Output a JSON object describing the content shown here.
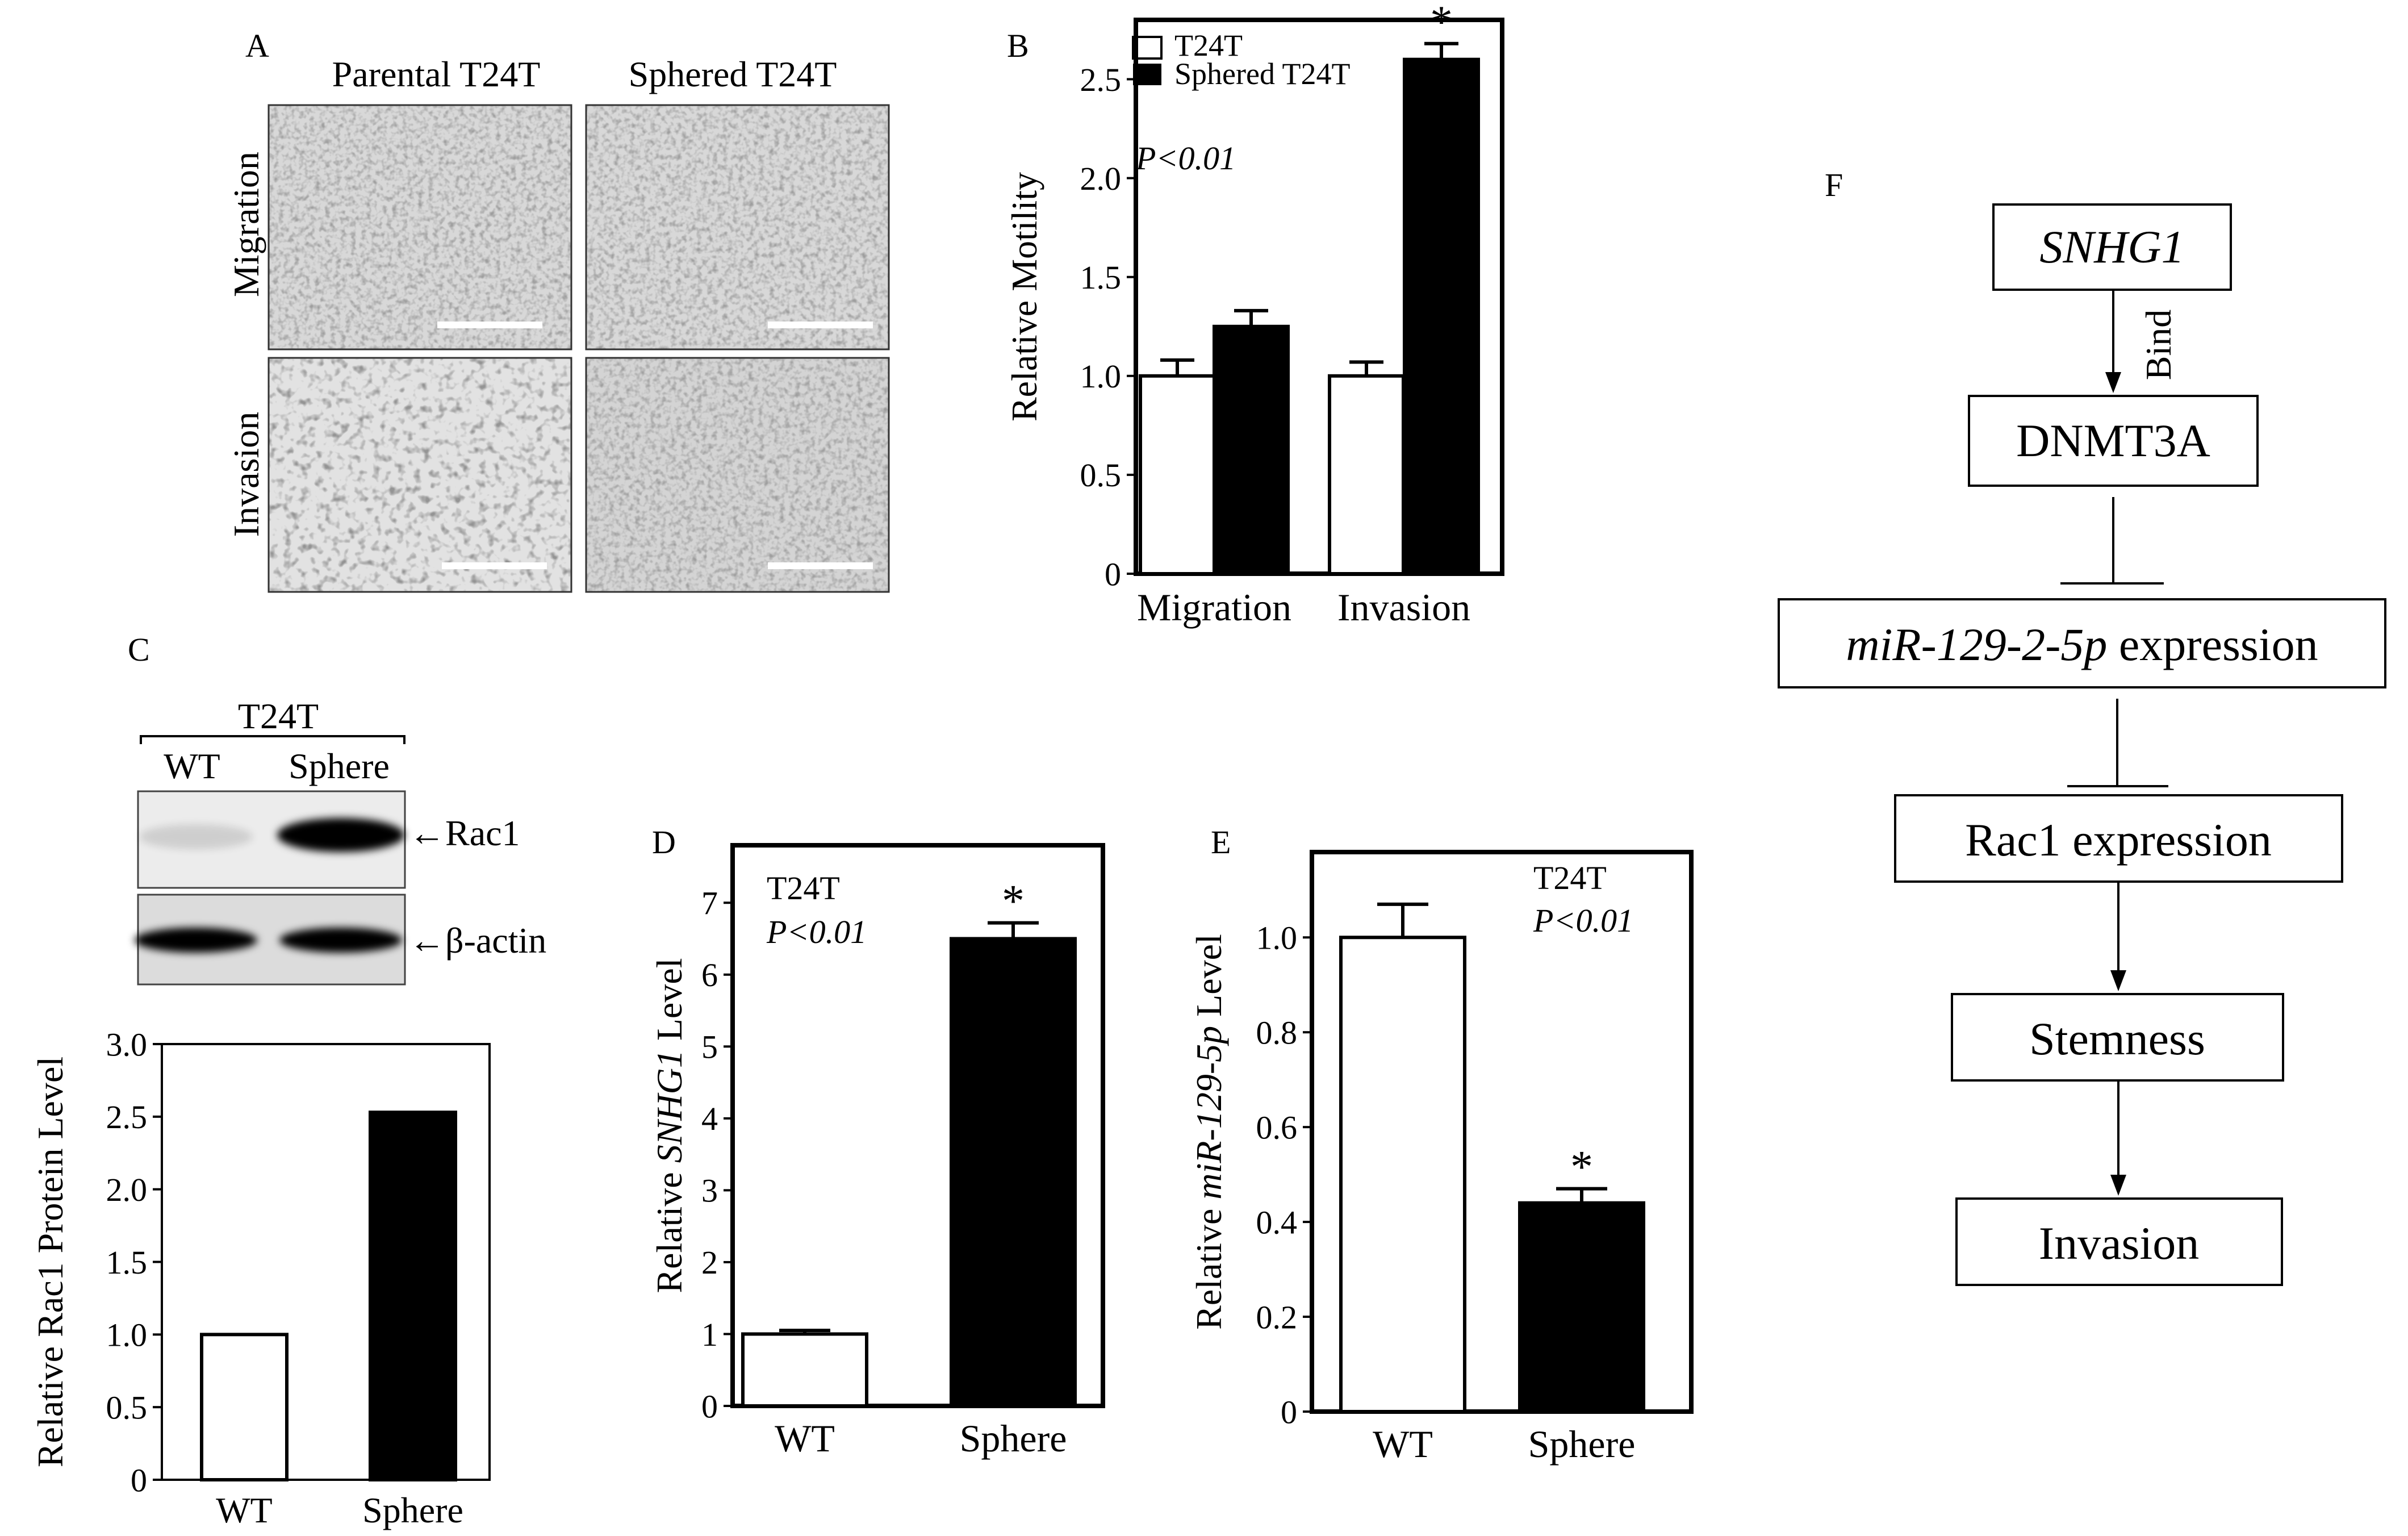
{
  "panel_labels": {
    "a": "A",
    "b": "B",
    "c": "C",
    "d": "D",
    "e": "E",
    "f": "F"
  },
  "panel_a": {
    "column_titles": [
      "Parental T24T",
      "Sphered T24T"
    ],
    "row_titles": [
      "Migration",
      "Invasion"
    ]
  },
  "panel_c_blot": {
    "group_label": "T24T",
    "lane_labels": [
      "WT",
      "Sphere"
    ],
    "band_labels": [
      "←Rac1",
      "←β-actin"
    ],
    "band_intensity": {
      "rac1": [
        0.12,
        1.0
      ],
      "actin": [
        1.0,
        1.0
      ]
    }
  },
  "flowchart": {
    "nodes": [
      {
        "text": "SNHG1",
        "italic_part": "SNHG1",
        "plain_part": ""
      },
      {
        "text": "DNMT3A",
        "italic_part": "",
        "plain_part": "DNMT3A"
      },
      {
        "text": "miR-129-2-5p expression",
        "italic_part": "miR-129-2-5p",
        "plain_part": " expression"
      },
      {
        "text": "Rac1 expression",
        "italic_part": "",
        "plain_part": "Rac1 expression"
      },
      {
        "text": "Stemness",
        "italic_part": "",
        "plain_part": "Stemness"
      },
      {
        "text": "Invasion",
        "italic_part": "",
        "plain_part": "Invasion"
      }
    ],
    "edges": [
      {
        "from": 0,
        "to": 1,
        "type": "arrow",
        "label": "Bind"
      },
      {
        "from": 1,
        "to": 2,
        "type": "inhibit",
        "label": ""
      },
      {
        "from": 2,
        "to": 3,
        "type": "inhibit",
        "label": ""
      },
      {
        "from": 3,
        "to": 4,
        "type": "arrow",
        "label": ""
      },
      {
        "from": 4,
        "to": 5,
        "type": "arrow",
        "label": ""
      }
    ]
  },
  "chart_data": [
    {
      "panel": "B",
      "type": "bar",
      "categories": [
        "Migration",
        "Invasion"
      ],
      "series": [
        {
          "name": "T24T",
          "values": [
            1.0,
            1.0
          ],
          "errors": [
            0.08,
            0.07
          ],
          "fill": "#ffffff"
        },
        {
          "name": "Sphered T24T",
          "values": [
            1.25,
            2.6
          ],
          "errors": [
            0.08,
            0.08
          ],
          "fill": "#000000"
        }
      ],
      "ylabel": "Relative  Motility",
      "ylim": [
        0,
        2.8
      ],
      "yticks": [
        0,
        0.5,
        1.0,
        1.5,
        2.0,
        2.5
      ],
      "ytick_labels": [
        "0",
        "0.5",
        "1.0",
        "1.5",
        "2.0",
        "2.5"
      ],
      "annotations": [
        {
          "text": "P<0.01",
          "italic": true
        }
      ],
      "significance": [
        {
          "series": 1,
          "category": 1,
          "text": "*"
        }
      ],
      "legend": "top-left"
    },
    {
      "panel": "C",
      "type": "bar",
      "categories": [
        "WT",
        "Sphere"
      ],
      "values": [
        1.0,
        2.53
      ],
      "fills": [
        "#ffffff",
        "#000000"
      ],
      "ylabel": "Relative Rac1 Protein Level",
      "ylim": [
        0,
        3.0
      ],
      "yticks": [
        0,
        0.5,
        1.0,
        1.5,
        2.0,
        2.5,
        3.0
      ],
      "ytick_labels": [
        "0",
        "0.5",
        "1.0",
        "1.5",
        "2.0",
        "2.5",
        "3.0"
      ]
    },
    {
      "panel": "D",
      "type": "bar",
      "categories": [
        "WT",
        "Sphere"
      ],
      "values": [
        1.0,
        6.5
      ],
      "errors": [
        0.05,
        0.22
      ],
      "fills": [
        "#ffffff",
        "#000000"
      ],
      "ylabel_prefix": "Relative  ",
      "ylabel_italic": "SNHG1",
      "ylabel_suffix": " Level",
      "ylim": [
        0,
        7.8
      ],
      "yticks": [
        0,
        1,
        2,
        3,
        4,
        5,
        6,
        7
      ],
      "ytick_labels": [
        "0",
        "1",
        "2",
        "3",
        "4",
        "5",
        "6",
        "7"
      ],
      "annotations": [
        {
          "text": "T24T",
          "italic": false
        },
        {
          "text": "P<0.01",
          "italic": true
        }
      ],
      "significance": [
        {
          "category": 1,
          "text": "*"
        }
      ]
    },
    {
      "panel": "E",
      "type": "bar",
      "categories": [
        "WT",
        "Sphere"
      ],
      "values": [
        1.0,
        0.44
      ],
      "errors": [
        0.07,
        0.03
      ],
      "fills": [
        "#ffffff",
        "#000000"
      ],
      "ylabel_prefix": "Relative ",
      "ylabel_italic": "miR-129-5p",
      "ylabel_suffix": " Level",
      "ylim": [
        0,
        1.18
      ],
      "yticks": [
        0,
        0.2,
        0.4,
        0.6,
        0.8,
        1.0
      ],
      "ytick_labels": [
        "0",
        "0.2",
        "0.4",
        "0.6",
        "0.8",
        "1.0"
      ],
      "annotations": [
        {
          "text": "T24T",
          "italic": false
        },
        {
          "text": "P<0.01",
          "italic": true
        }
      ],
      "significance": [
        {
          "category": 1,
          "text": "*"
        }
      ]
    }
  ]
}
